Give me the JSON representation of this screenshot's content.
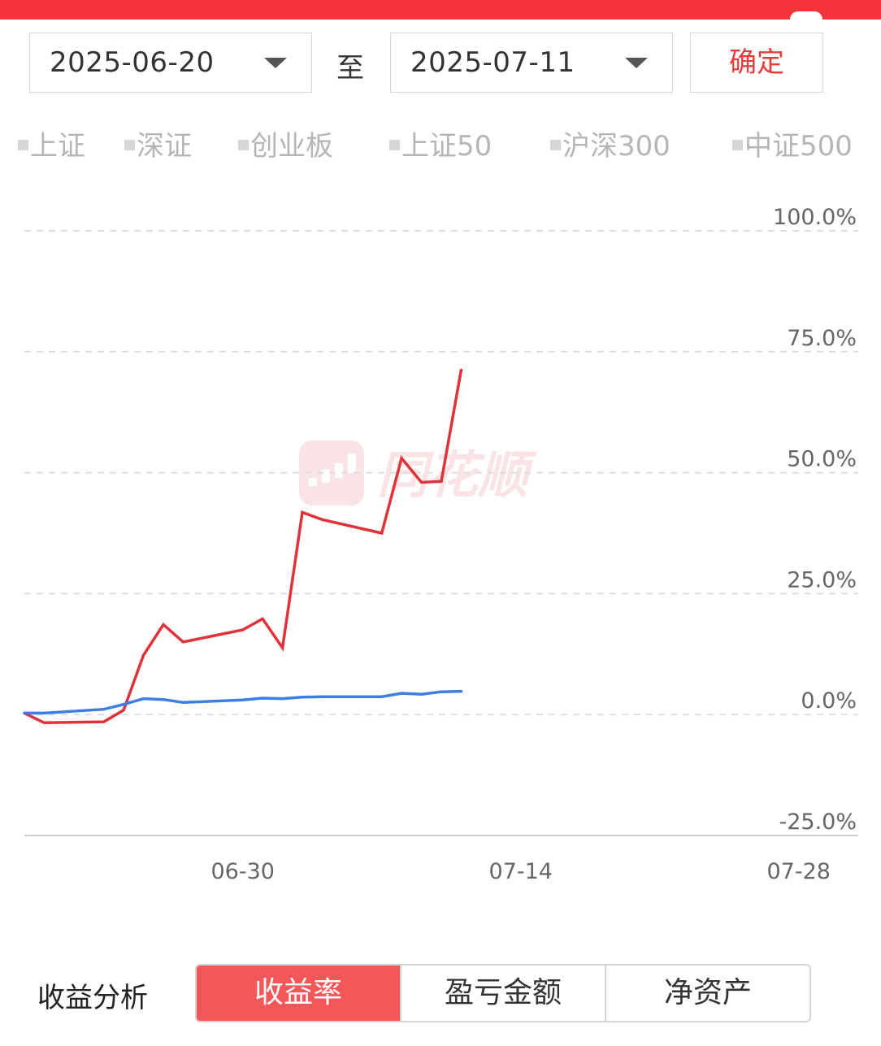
{
  "date_range": {
    "start": "2025-06-20",
    "separator": "至",
    "end": "2025-07-11",
    "confirm_label": "确定"
  },
  "legend": [
    {
      "label": "上证",
      "active": true
    },
    {
      "label": "深证",
      "active": false
    },
    {
      "label": "创业板",
      "active": false
    },
    {
      "label": "上证50",
      "active": false
    },
    {
      "label": "沪深300",
      "active": false
    },
    {
      "label": "中证500",
      "active": false
    }
  ],
  "watermark": "同花顺",
  "colors": {
    "accent_red": "#f4333c",
    "portfolio_line": "#e0323a",
    "index_line": "#3d7de6",
    "active_tab": "#f4575a"
  },
  "chart_data": {
    "type": "line",
    "title": "",
    "xlabel": "",
    "ylabel": "",
    "x_ticks": [
      "06-30",
      "07-14",
      "07-28"
    ],
    "x_range": [
      "2025-06-19",
      "2025-07-31"
    ],
    "y_ticks": [
      "100.0%",
      "75.0%",
      "50.0%",
      "25.0%",
      "0.0%",
      "-25.0%"
    ],
    "ylim": [
      -25,
      100
    ],
    "grid": true,
    "series": [
      {
        "key": "portfolio",
        "color": "#e0323a",
        "points": [
          [
            "2025-06-19",
            0.3
          ],
          [
            "2025-06-20",
            -1.7
          ],
          [
            "2025-06-23",
            -1.5
          ],
          [
            "2025-06-24",
            0.9
          ],
          [
            "2025-06-25",
            12.3
          ],
          [
            "2025-06-26",
            18.6
          ],
          [
            "2025-06-27",
            15.0
          ],
          [
            "2025-06-30",
            17.5
          ],
          [
            "2025-07-01",
            19.8
          ],
          [
            "2025-07-02",
            13.8
          ],
          [
            "2025-07-03",
            41.8
          ],
          [
            "2025-07-04",
            40.3
          ],
          [
            "2025-07-07",
            37.5
          ],
          [
            "2025-07-08",
            53.0
          ],
          [
            "2025-07-09",
            48.0
          ],
          [
            "2025-07-10",
            48.2
          ],
          [
            "2025-07-11",
            71.2
          ]
        ]
      },
      {
        "key": "上证",
        "color": "#3d7de6",
        "points": [
          [
            "2025-06-19",
            0.3
          ],
          [
            "2025-06-20",
            0.3
          ],
          [
            "2025-06-23",
            1.1
          ],
          [
            "2025-06-24",
            2.1
          ],
          [
            "2025-06-25",
            3.3
          ],
          [
            "2025-06-26",
            3.1
          ],
          [
            "2025-06-27",
            2.5
          ],
          [
            "2025-06-30",
            3.0
          ],
          [
            "2025-07-01",
            3.4
          ],
          [
            "2025-07-02",
            3.3
          ],
          [
            "2025-07-03",
            3.6
          ],
          [
            "2025-07-04",
            3.7
          ],
          [
            "2025-07-07",
            3.7
          ],
          [
            "2025-07-08",
            4.4
          ],
          [
            "2025-07-09",
            4.2
          ],
          [
            "2025-07-10",
            4.7
          ],
          [
            "2025-07-11",
            4.8
          ]
        ]
      }
    ]
  },
  "analysis": {
    "label": "收益分析",
    "tabs": [
      {
        "label": "收益率",
        "active": true
      },
      {
        "label": "盈亏金额",
        "active": false
      },
      {
        "label": "净资产",
        "active": false
      }
    ]
  }
}
